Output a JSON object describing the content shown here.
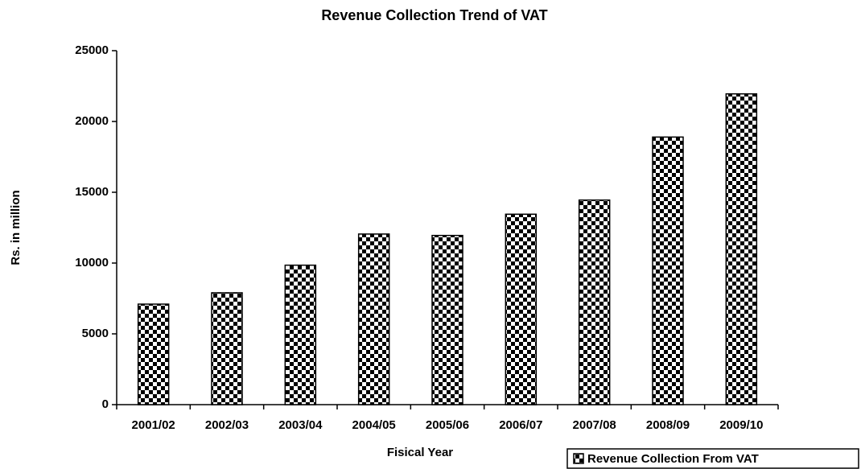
{
  "chart_data": {
    "type": "bar",
    "title": "Revenue Collection Trend of VAT",
    "x_label": "Fisical Year",
    "y_label": "Rs. in million",
    "categories": [
      "2001/02",
      "2002/03",
      "2003/04",
      "2004/05",
      "2005/06",
      "2006/07",
      "2007/08",
      "2008/09",
      "2009/10"
    ],
    "series": [
      {
        "name": "Revenue Collection From VAT",
        "color": "#000000",
        "values": [
          7100,
          7900,
          9850,
          12050,
          11950,
          13450,
          14450,
          18900,
          21950
        ]
      }
    ],
    "ylim": [
      0,
      25000
    ],
    "yticks": [
      0,
      5000,
      10000,
      15000,
      20000,
      25000
    ],
    "grid": false,
    "legend": "bottom-right"
  }
}
